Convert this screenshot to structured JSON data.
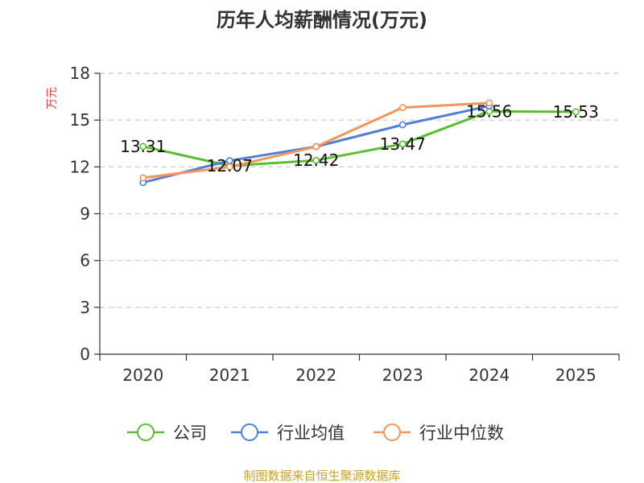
{
  "chart_data": {
    "type": "line",
    "title": "历年人均薪酬情况(万元)",
    "ylabel": "万元",
    "xlabel": "",
    "categories": [
      "2020",
      "2021",
      "2022",
      "2023",
      "2024",
      "2025"
    ],
    "ylim": [
      0,
      18
    ],
    "yticks": [
      "0",
      "3",
      "6",
      "9",
      "12",
      "15",
      "18"
    ],
    "grid": true,
    "legend_position": "bottom",
    "series": [
      {
        "name": "公司",
        "color": "#5ABF2F",
        "values": [
          13.31,
          12.07,
          12.42,
          13.47,
          15.56,
          15.53
        ],
        "labels": [
          "13.31",
          "12.07",
          "12.42",
          "13.47",
          "15.56",
          "15.53"
        ]
      },
      {
        "name": "行业均值",
        "color": "#4F7FD8",
        "values": [
          11.0,
          12.4,
          13.3,
          14.7,
          15.9,
          null
        ]
      },
      {
        "name": "行业中位数",
        "color": "#F5955A",
        "values": [
          11.3,
          12.0,
          13.3,
          15.8,
          16.1,
          null
        ]
      }
    ]
  },
  "unit_color": "#E8483F",
  "source_text": "制图数据来自恒生聚源数据库",
  "source_color": "#C9A227"
}
